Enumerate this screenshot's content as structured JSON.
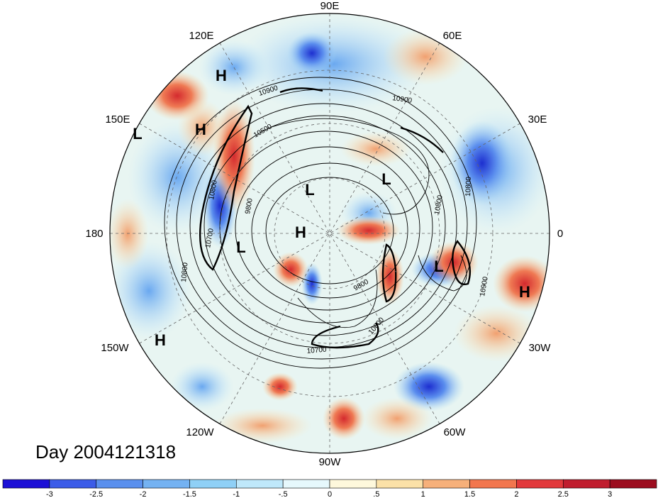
{
  "day_label": "Day 2004121318",
  "longitude_labels": {
    "e90": "90E",
    "e60": "60E",
    "e30": "30E",
    "zero": "0",
    "w30": "30W",
    "w60": "60W",
    "w90": "90W",
    "w120": "120W",
    "w150": "150W",
    "e180": "180",
    "e150": "150E",
    "e120": "120E"
  },
  "pressure_centers": [
    {
      "type": "H"
    },
    {
      "type": "H"
    },
    {
      "type": "L"
    },
    {
      "type": "L"
    },
    {
      "type": "L"
    },
    {
      "type": "H"
    },
    {
      "type": "L"
    },
    {
      "type": "L"
    },
    {
      "type": "H"
    },
    {
      "type": "H"
    }
  ],
  "contour_labels": [
    "10900",
    "10900",
    "10500",
    "10800",
    "9800",
    "10700",
    "10800",
    "9800",
    "10600",
    "10700",
    "10800",
    "10900",
    "10800"
  ],
  "colorbar": {
    "ticks": [
      "-3",
      "-2.5",
      "-2",
      "-1.5",
      "-1",
      "-.5",
      "0",
      ".5",
      "1",
      "1.5",
      "2",
      "2.5",
      "3"
    ],
    "colors": [
      "#1c10d6",
      "#3b5ce8",
      "#5a90ee",
      "#74b2f2",
      "#8fd0f6",
      "#bfe8fa",
      "#e6f8fc",
      "#fef8dc",
      "#fbe1a8",
      "#f6b07a",
      "#f2764e",
      "#e2393b",
      "#c01d2e",
      "#9c0d1f"
    ]
  }
}
